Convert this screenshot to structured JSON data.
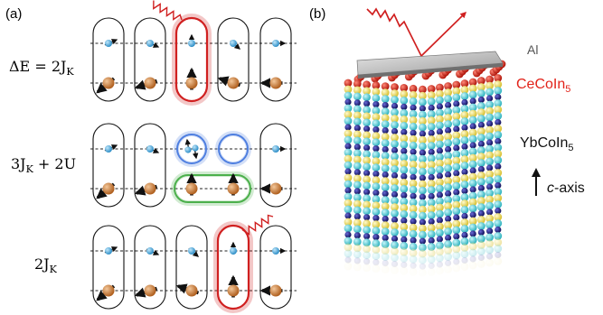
{
  "panel_a": {
    "label": "(a)",
    "rows": [
      {
        "energy_label": "ΔE = 2J",
        "energy_sub": "K"
      },
      {
        "energy_label": "3J",
        "energy_sub": "K",
        "energy_suffix": " + 2U"
      },
      {
        "energy_label": "2J",
        "energy_sub": "K"
      }
    ]
  },
  "panel_b": {
    "label": "(b)",
    "layers": {
      "top": "Al",
      "middle": "CeCoIn",
      "middle_sub": "5",
      "bottom": "YbCoIn",
      "bottom_sub": "5"
    },
    "axis": {
      "italic": "c",
      "text": "-axis"
    }
  },
  "colors": {
    "spin_small": "#3a9fd6",
    "spin_large": "#c97a3a",
    "highlight_red": "#d02020",
    "highlight_blue": "#4f7fe0",
    "highlight_green": "#4cb04c",
    "cecoin_label": "#e2231a",
    "atom_red": "#d62a1a",
    "atom_yellow": "#f2e25a",
    "atom_cyan": "#4fd0d8",
    "atom_navy": "#1a1a8a"
  }
}
